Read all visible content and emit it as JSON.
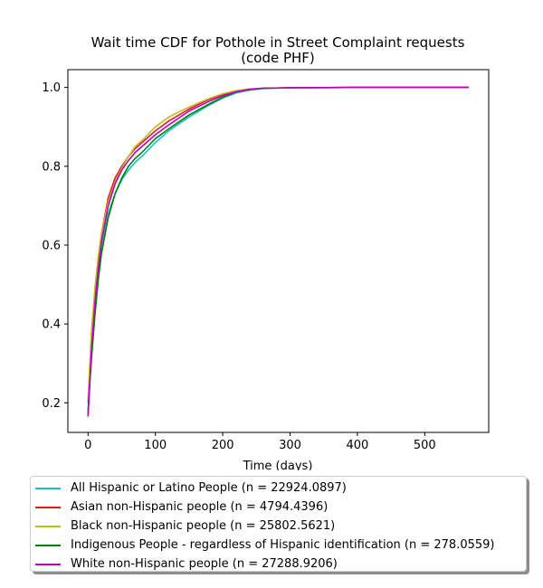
{
  "chart_data": {
    "type": "line",
    "title": [
      "Wait time CDF for Pothole in Street Complaint  requests",
      "(code PHF)"
    ],
    "xlabel": "Time (days)",
    "ylabel": "",
    "xlim": [
      -30,
      595
    ],
    "ylim": [
      0.125,
      1.045
    ],
    "xticks": [
      0,
      100,
      200,
      300,
      400,
      500
    ],
    "yticks": [
      0.2,
      0.4,
      0.6,
      0.8,
      1.0
    ],
    "ytick_labels": [
      "0.2",
      "0.4",
      "0.6",
      "0.8",
      "1.0"
    ],
    "grid": false,
    "legend_position": "below",
    "series": [
      {
        "name": "All Hispanic or Latino People (n = 22924.0897)",
        "color": "#17becf",
        "x": [
          0,
          5,
          10,
          15,
          20,
          30,
          40,
          50,
          60,
          70,
          80,
          100,
          120,
          150,
          180,
          200,
          220,
          240,
          260,
          300,
          400,
          565
        ],
        "y": [
          0.2,
          0.35,
          0.45,
          0.53,
          0.6,
          0.68,
          0.73,
          0.765,
          0.79,
          0.81,
          0.825,
          0.86,
          0.89,
          0.925,
          0.955,
          0.973,
          0.986,
          0.993,
          0.997,
          0.999,
          1.0,
          1.0
        ]
      },
      {
        "name": "Asian non-Hispanic people (n = 4794.4396)",
        "color": "#e41a1c",
        "x": [
          0,
          5,
          10,
          15,
          20,
          30,
          40,
          50,
          60,
          70,
          80,
          100,
          120,
          150,
          180,
          200,
          220,
          240,
          260,
          300,
          400,
          565
        ],
        "y": [
          0.17,
          0.35,
          0.47,
          0.56,
          0.63,
          0.72,
          0.77,
          0.8,
          0.825,
          0.845,
          0.86,
          0.89,
          0.915,
          0.945,
          0.97,
          0.982,
          0.991,
          0.996,
          0.998,
          0.999,
          1.0,
          1.0
        ]
      },
      {
        "name": "Black non-Hispanic people (n = 25802.5621)",
        "color": "#bcbd22",
        "x": [
          0,
          5,
          10,
          15,
          20,
          30,
          40,
          50,
          60,
          70,
          80,
          100,
          120,
          150,
          180,
          200,
          220,
          240,
          260,
          300,
          400,
          565
        ],
        "y": [
          0.21,
          0.38,
          0.49,
          0.57,
          0.63,
          0.71,
          0.76,
          0.795,
          0.825,
          0.85,
          0.865,
          0.9,
          0.925,
          0.95,
          0.972,
          0.984,
          0.992,
          0.996,
          0.998,
          0.999,
          1.0,
          1.0
        ]
      },
      {
        "name": "Indigenous People - regardless of Hispanic identification (n = 278.0559)",
        "color": "#008000",
        "x": [
          0,
          5,
          10,
          15,
          20,
          30,
          40,
          50,
          60,
          70,
          80,
          100,
          120,
          150,
          180,
          200,
          220,
          240,
          260,
          300,
          400,
          565
        ],
        "y": [
          0.18,
          0.31,
          0.42,
          0.51,
          0.58,
          0.67,
          0.73,
          0.77,
          0.8,
          0.82,
          0.835,
          0.87,
          0.895,
          0.93,
          0.958,
          0.975,
          0.988,
          0.995,
          0.998,
          0.999,
          1.0,
          1.0
        ]
      },
      {
        "name": "White non-Hispanic people (n = 27288.9206)",
        "color": "#bf00bf",
        "x": [
          0,
          5,
          10,
          15,
          20,
          30,
          40,
          50,
          60,
          70,
          80,
          100,
          120,
          150,
          180,
          200,
          220,
          240,
          260,
          300,
          400,
          565
        ],
        "y": [
          0.165,
          0.33,
          0.45,
          0.54,
          0.61,
          0.7,
          0.755,
          0.79,
          0.815,
          0.835,
          0.85,
          0.88,
          0.905,
          0.94,
          0.965,
          0.979,
          0.989,
          0.995,
          0.998,
          0.999,
          1.0,
          1.0
        ]
      }
    ]
  }
}
